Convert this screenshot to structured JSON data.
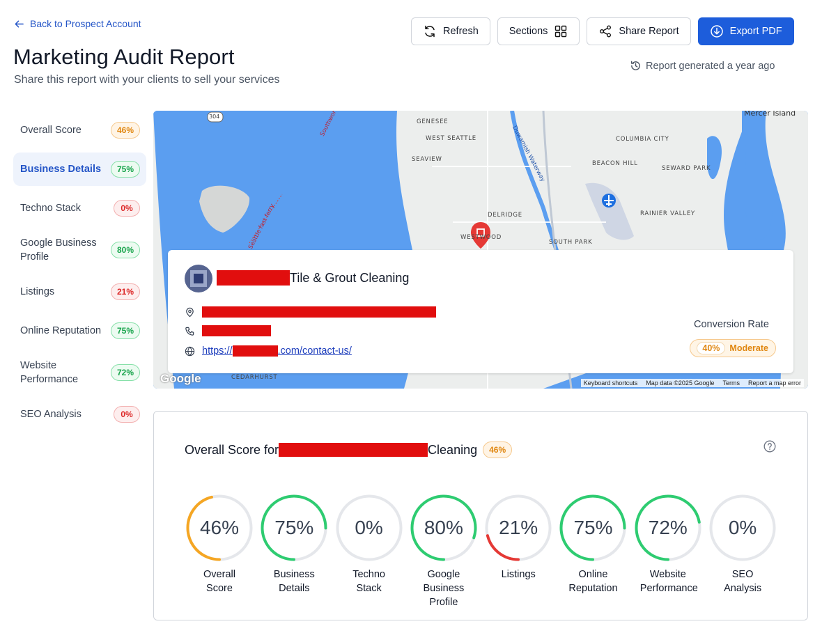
{
  "header": {
    "back_label": "Back to Prospect Account",
    "title": "Marketing Audit Report",
    "subtitle": "Share this report with your clients to sell your services",
    "generated": "Report generated a year ago"
  },
  "toolbar": {
    "refresh": "Refresh",
    "sections": "Sections",
    "share": "Share Report",
    "export": "Export PDF"
  },
  "sidebar": {
    "items": [
      {
        "label": "Overall Score",
        "value": "46%",
        "status": "orange"
      },
      {
        "label": "Business Details",
        "value": "75%",
        "status": "green",
        "active": true
      },
      {
        "label": "Techno Stack",
        "value": "0%",
        "status": "red"
      },
      {
        "label": "Google Business Profile",
        "value": "80%",
        "status": "green"
      },
      {
        "label": "Listings",
        "value": "21%",
        "status": "red"
      },
      {
        "label": "Online Reputation",
        "value": "75%",
        "status": "green"
      },
      {
        "label": "Website Performance",
        "value": "72%",
        "status": "green"
      },
      {
        "label": "SEO Analysis",
        "value": "0%",
        "status": "red"
      }
    ]
  },
  "map": {
    "labels": {
      "genesee": "GENESEE",
      "west_seattle": "WEST SEATTLE",
      "seaview": "SEAVIEW",
      "delridge": "DELRIDGE",
      "westwood": "WESTWOOD",
      "south_park": "SOUTH PARK",
      "columbia_city": "COLUMBIA CITY",
      "beacon_hill": "BEACON HILL",
      "seward_park": "SEWARD PARK",
      "rainier_valley": "RAINIER VALLEY",
      "mercer_island": "Mercer Island",
      "cedarhurst": "CEDARHURST",
      "route": "304",
      "ferry": "Seattle fast ferry",
      "southworth": "Southworth-F",
      "duwamish": "Duwamish Waterway"
    },
    "footer": {
      "shortcuts": "Keyboard shortcuts",
      "data": "Map data ©2025 Google",
      "terms": "Terms",
      "report": "Report a map error"
    },
    "logo": "Google"
  },
  "business": {
    "name_suffix": "Tile & Grout Cleaning",
    "website_prefix": "https://",
    "website_suffix": ".com/contact-us/",
    "conversion_label": "Conversion Rate",
    "conversion_value": "40%",
    "conversion_level": "Moderate"
  },
  "overall": {
    "title_prefix": "Overall Score for",
    "title_suffix": "Cleaning",
    "badge": "46%",
    "gauges": [
      {
        "label": "Overall Score",
        "value": 46,
        "text": "46%",
        "color": "#f5a623"
      },
      {
        "label": "Business Details",
        "value": 75,
        "text": "75%",
        "color": "#2ecc71"
      },
      {
        "label": "Techno Stack",
        "value": 0,
        "text": "0%",
        "color": "#e53935"
      },
      {
        "label": "Google Business Profile",
        "value": 80,
        "text": "80%",
        "color": "#2ecc71"
      },
      {
        "label": "Listings",
        "value": 21,
        "text": "21%",
        "color": "#e53935"
      },
      {
        "label": "Online Reputation",
        "value": 75,
        "text": "75%",
        "color": "#2ecc71"
      },
      {
        "label": "Website Performance",
        "value": 72,
        "text": "72%",
        "color": "#2ecc71"
      },
      {
        "label": "SEO Analysis",
        "value": 0,
        "text": "0%",
        "color": "#e53935"
      }
    ]
  }
}
